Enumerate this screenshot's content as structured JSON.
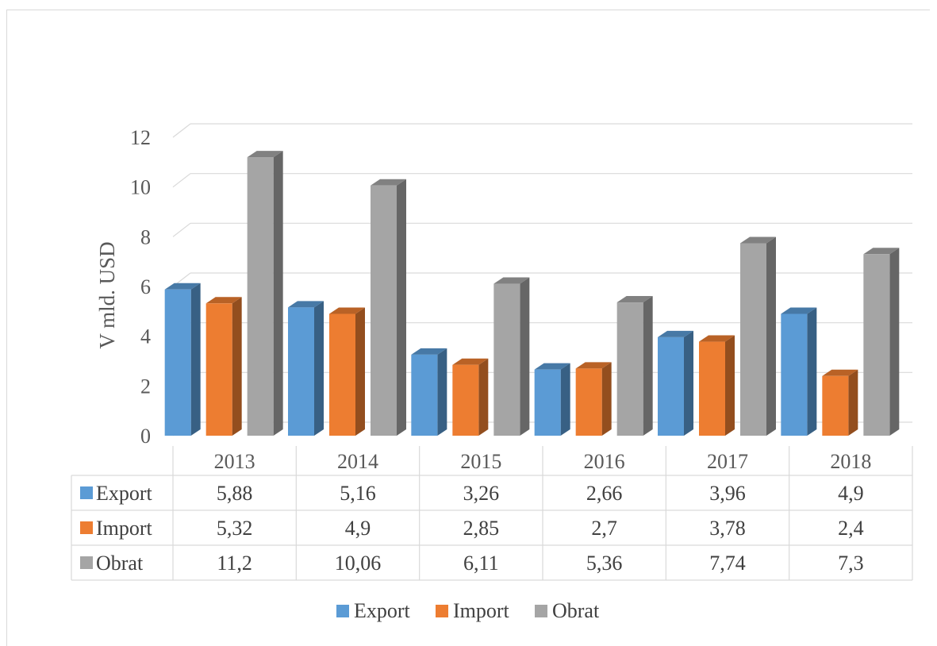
{
  "chart_data": {
    "type": "bar",
    "subtype": "3d-clustered-column-with-data-table",
    "categories": [
      "2013",
      "2014",
      "2015",
      "2016",
      "2017",
      "2018"
    ],
    "series": [
      {
        "name": "Export",
        "color": "#5b9bd5",
        "values": [
          5.88,
          5.16,
          3.26,
          2.66,
          3.96,
          4.9
        ],
        "labels": [
          "5,88",
          "5,16",
          "3,26",
          "2,66",
          "3,96",
          "4,9"
        ]
      },
      {
        "name": "Import",
        "color": "#ed7d31",
        "values": [
          5.32,
          4.9,
          2.85,
          2.7,
          3.78,
          2.4
        ],
        "labels": [
          "5,32",
          "4,9",
          "2,85",
          "2,7",
          "3,78",
          "2,4"
        ]
      },
      {
        "name": "Obrat",
        "color": "#a5a5a5",
        "values": [
          11.2,
          10.06,
          6.11,
          5.36,
          7.74,
          7.3
        ],
        "labels": [
          "11,2",
          "10,06",
          "6,11",
          "5,36",
          "7,74",
          "7,3"
        ]
      }
    ],
    "ylabel": "V mld. USD",
    "ylim": [
      0,
      12
    ],
    "yticks": [
      "0",
      "2",
      "4",
      "6",
      "8",
      "10",
      "12"
    ],
    "grid": true,
    "legend": {
      "position": "bottom",
      "entries": [
        "Export",
        "Import",
        "Obrat"
      ]
    },
    "data_table": true
  }
}
